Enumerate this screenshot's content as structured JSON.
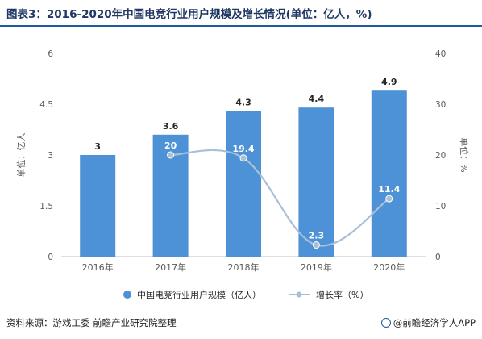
{
  "title": "图表3：2016-2020年中国电竞行业用户规模及增长情况(单位：亿人，%)",
  "source": "资料来源：游戏工委 前瞻产业研究院整理",
  "credit": "@前瞻经济学人APP",
  "colors": {
    "bar": "#4d92d6",
    "line": "#a9bfd6",
    "title": "#1f3864",
    "rule": "#1f5a9e"
  },
  "chart_data": {
    "type": "bar",
    "categories": [
      "2016年",
      "2017年",
      "2018年",
      "2019年",
      "2020年"
    ],
    "series": [
      {
        "name": "中国电竞行业用户规模（亿人）",
        "type": "bar",
        "axis": "left",
        "values": [
          3,
          3.6,
          4.3,
          4.4,
          4.9
        ],
        "labels": [
          "3",
          "3.6",
          "4.3",
          "4.4",
          "4.9"
        ]
      },
      {
        "name": "增长率（%）",
        "type": "line",
        "axis": "right",
        "values": [
          null,
          20,
          19.4,
          2.3,
          11.4
        ],
        "labels": [
          "",
          "20",
          "19.4",
          "2.3",
          "11.4"
        ]
      }
    ],
    "y_left": {
      "label": "单位：亿人",
      "min": 0,
      "max": 6,
      "ticks": [
        0,
        1.5,
        3,
        4.5,
        6
      ],
      "tick_labels": [
        "0",
        "1.5",
        "3",
        "4.5",
        "6"
      ]
    },
    "y_right": {
      "label": "单位：%",
      "min": 0,
      "max": 40,
      "ticks": [
        0,
        10,
        20,
        30,
        40
      ],
      "tick_labels": [
        "0",
        "10",
        "20",
        "30",
        "40"
      ]
    },
    "grid": false,
    "legend": "bottom"
  }
}
